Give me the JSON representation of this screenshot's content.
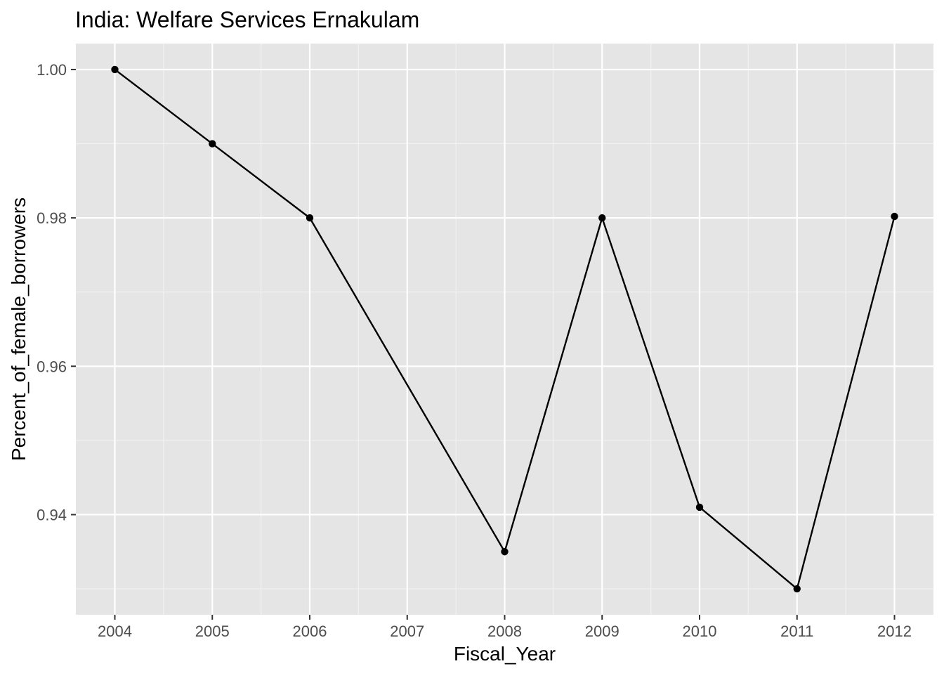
{
  "chart_data": {
    "type": "line",
    "title": "India:  Welfare Services Ernakulam",
    "xlabel": "Fiscal_Year",
    "ylabel": "Percent_of_female_borrowers",
    "x": [
      2004,
      2005,
      2006,
      2008,
      2009,
      2010,
      2011,
      2012
    ],
    "series": [
      {
        "values": [
          1.0,
          0.99,
          0.98,
          0.935,
          0.98,
          0.941,
          0.93,
          0.9802
        ]
      }
    ],
    "xlim": [
      2003.6,
      2012.4
    ],
    "ylim": [
      0.9265,
      1.0035
    ],
    "x_ticks": [
      2004,
      2005,
      2006,
      2007,
      2008,
      2009,
      2010,
      2011,
      2012
    ],
    "x_tick_labels": [
      "2004",
      "2005",
      "2006",
      "2007",
      "2008",
      "2009",
      "2010",
      "2011",
      "2012"
    ],
    "y_ticks": [
      0.94,
      0.96,
      0.98,
      1.0
    ],
    "y_tick_labels": [
      "0.94",
      "0.96",
      "0.98",
      "1.00"
    ],
    "grid": true,
    "legend": "none",
    "colors": {
      "panel_background": "#e5e5e5",
      "grid_major": "#ffffff",
      "grid_minor": "#f2f2f2",
      "line": "#000000",
      "point": "#000000",
      "tick_text": "#4d4d4d",
      "tick_mark": "#333333"
    }
  }
}
